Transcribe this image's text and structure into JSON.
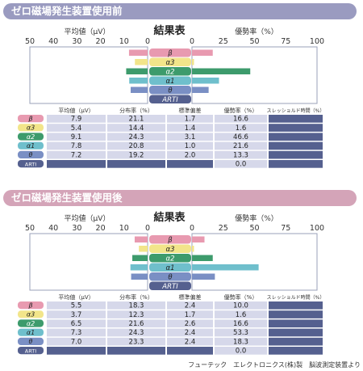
{
  "sections": [
    {
      "banner": "ゼロ磁場発生装置使用前",
      "chart_title": "結果表",
      "left_axis_label": "平均値（μV）",
      "right_axis_label": "優勢率（%）",
      "left_ticks": [
        "50",
        "40",
        "30",
        "20",
        "10",
        "0"
      ],
      "right_ticks": [
        "0",
        "25",
        "50",
        "75",
        "100"
      ],
      "table_headers": [
        "平均値（μV）",
        "分布率（%）",
        "標準偏差",
        "優勢率（%）",
        "スレッショルド時間（%）"
      ]
    },
    {
      "banner": "ゼロ磁場発生装置使用後",
      "chart_title": "結果表",
      "left_axis_label": "平均値（μV）",
      "right_axis_label": "優勢率（%）",
      "left_ticks": [
        "50",
        "40",
        "30",
        "20",
        "10",
        "0"
      ],
      "right_ticks": [
        "0",
        "25",
        "50",
        "75",
        "100"
      ],
      "table_headers": [
        "平均値（μV）",
        "分布率（%）",
        "標準偏差",
        "優勢率（%）",
        "スレッショルド時間（%）"
      ]
    }
  ],
  "chart_data": [
    {
      "type": "bar",
      "categories": [
        "β",
        "α3",
        "α2",
        "α1",
        "θ",
        "ARTI"
      ],
      "category_colors": [
        "#e89ab0",
        "#f2e58a",
        "#3d9b6c",
        "#6fbfcc",
        "#7a8fc4",
        "#55608f"
      ],
      "left_xlim": [
        0,
        50
      ],
      "right_xlim": [
        0,
        100
      ],
      "series": [
        {
          "name": "平均値（μV）",
          "values": [
            7.9,
            5.4,
            9.1,
            7.8,
            7.2,
            null
          ]
        },
        {
          "name": "分布率（%）",
          "values": [
            21.1,
            14.4,
            24.3,
            20.8,
            19.2,
            null
          ]
        },
        {
          "name": "標準偏差",
          "values": [
            1.7,
            1.4,
            3.1,
            1.0,
            2.0,
            null
          ]
        },
        {
          "name": "優勢率（%）",
          "values": [
            16.6,
            1.6,
            46.6,
            21.6,
            13.3,
            0.0
          ]
        }
      ]
    },
    {
      "type": "bar",
      "categories": [
        "β",
        "α3",
        "α2",
        "α1",
        "θ",
        "ARTI"
      ],
      "category_colors": [
        "#e89ab0",
        "#f2e58a",
        "#3d9b6c",
        "#6fbfcc",
        "#7a8fc4",
        "#55608f"
      ],
      "left_xlim": [
        0,
        50
      ],
      "right_xlim": [
        0,
        100
      ],
      "series": [
        {
          "name": "平均値（μV）",
          "values": [
            5.5,
            3.7,
            6.5,
            7.3,
            7.0,
            null
          ]
        },
        {
          "name": "分布率（%）",
          "values": [
            18.3,
            12.3,
            21.6,
            24.3,
            23.3,
            null
          ]
        },
        {
          "name": "標準偏差",
          "values": [
            2.4,
            1.7,
            2.6,
            2.4,
            2.4,
            null
          ]
        },
        {
          "name": "優勢率（%）",
          "values": [
            10.0,
            1.6,
            16.6,
            53.3,
            18.3,
            0.0
          ]
        }
      ]
    }
  ],
  "footer": "フューテック　エレクトロニクス(株)製　脳波測定装置より",
  "colors": {
    "banner_before": "#9a9bc0",
    "banner_after": "#d4a4b8",
    "table_cell": "#d6d8ea",
    "table_dark": "#55608f",
    "bar_left": "#e07a9a",
    "axis_box": "#9aa0b8"
  }
}
